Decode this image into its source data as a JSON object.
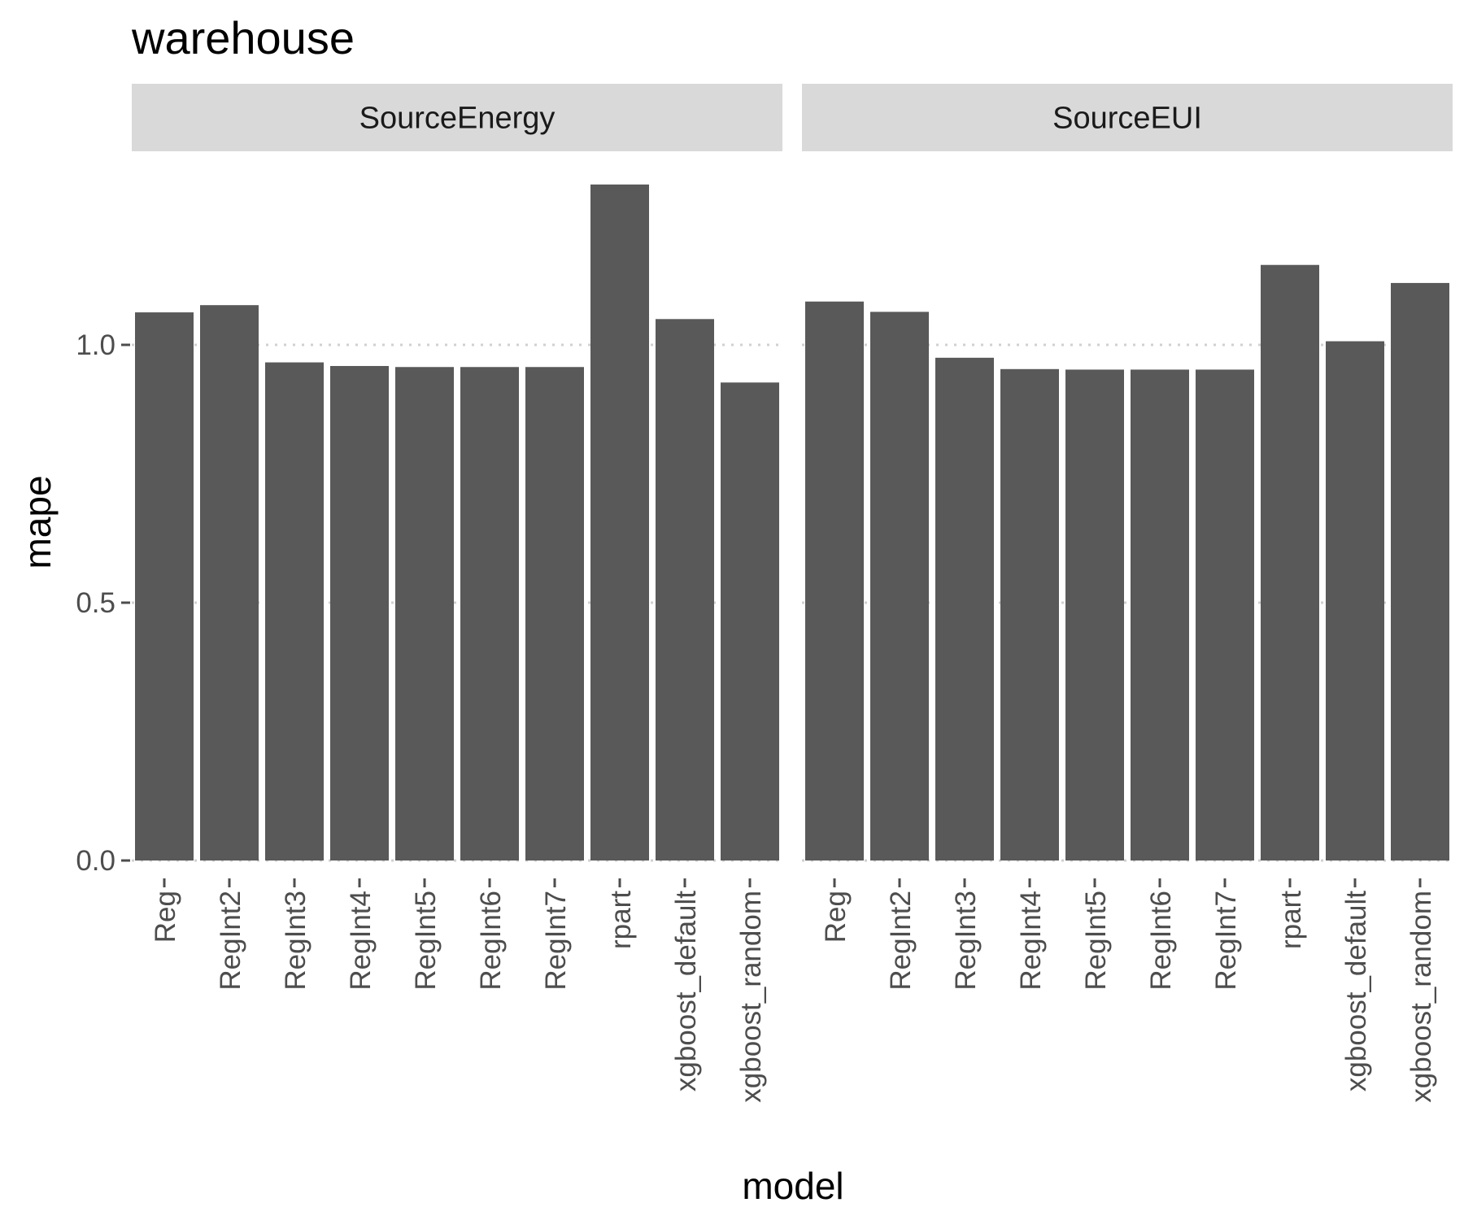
{
  "chart_data": {
    "type": "bar",
    "title": "warehouse",
    "xlabel": "model",
    "ylabel": "mape",
    "ylim": [
      0,
      1.3
    ],
    "yticks": [
      "0.0",
      "0.5",
      "1.0"
    ],
    "grid": "major y, dotted",
    "categories": [
      "Reg",
      "RegInt2",
      "RegInt3",
      "RegInt4",
      "RegInt5",
      "RegInt6",
      "RegInt7",
      "rpart",
      "xgboost_default",
      "xgboost_random"
    ],
    "panels": [
      {
        "name": "SourceEnergy",
        "values": [
          1.063,
          1.077,
          0.966,
          0.959,
          0.957,
          0.957,
          0.957,
          1.311,
          1.05,
          0.927
        ]
      },
      {
        "name": "SourceEUI",
        "values": [
          1.084,
          1.064,
          0.975,
          0.953,
          0.952,
          0.952,
          0.952,
          1.155,
          1.007,
          1.12
        ]
      }
    ],
    "bar_color": "#595959",
    "strip_color": "#d9d9d9",
    "grid_color": "#d0d0d0"
  }
}
